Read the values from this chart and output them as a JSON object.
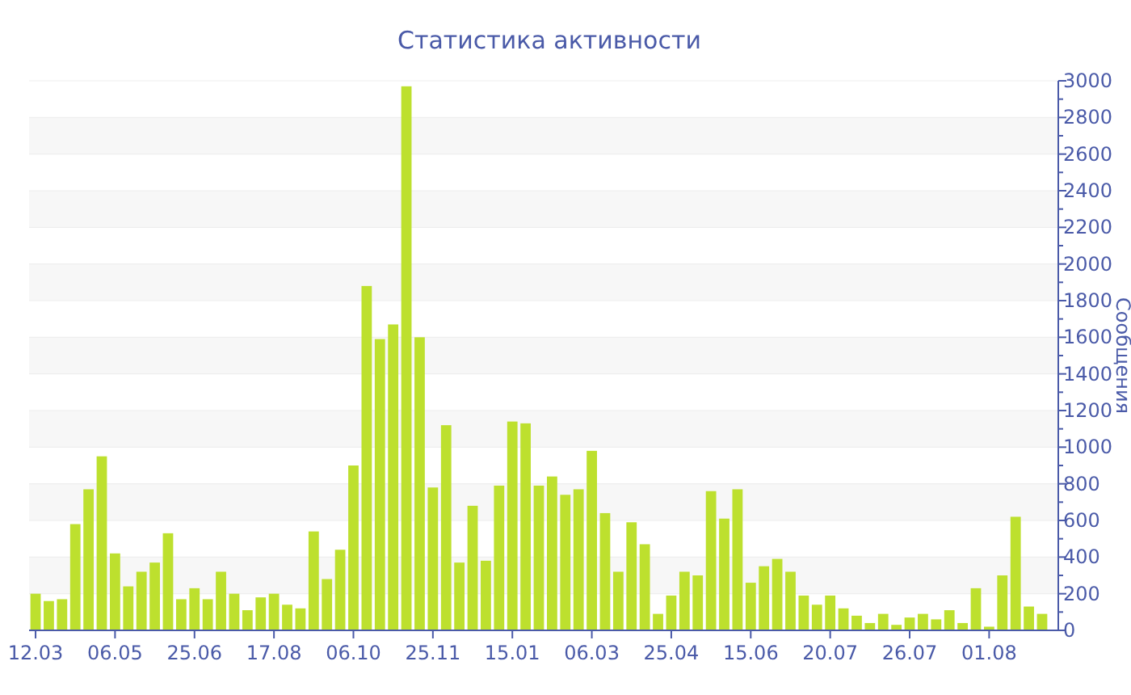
{
  "chart_data": {
    "type": "bar",
    "title": "Статистика активности",
    "y2label": "Сообщения",
    "categories": [
      "12.03",
      null,
      null,
      null,
      null,
      null,
      "06.05",
      null,
      null,
      null,
      null,
      null,
      "25.06",
      null,
      null,
      null,
      null,
      null,
      "17.08",
      null,
      null,
      null,
      null,
      null,
      "06.10",
      null,
      null,
      null,
      null,
      null,
      "25.11",
      null,
      null,
      null,
      null,
      null,
      "15.01",
      null,
      null,
      null,
      null,
      null,
      "06.03",
      null,
      null,
      null,
      null,
      null,
      "25.04",
      null,
      null,
      null,
      null,
      null,
      "15.06",
      null,
      null,
      null,
      null,
      null,
      "20.07",
      null,
      null,
      null,
      null,
      null,
      "26.07",
      null,
      null,
      null,
      null,
      null,
      "01.08",
      null,
      null,
      null,
      null
    ],
    "series": [
      {
        "axis": "y2",
        "color": "#bde02e",
        "values": [
          200,
          160,
          170,
          580,
          770,
          950,
          420,
          240,
          320,
          370,
          530,
          170,
          230,
          170,
          320,
          200,
          110,
          180,
          200,
          140,
          120,
          540,
          280,
          440,
          900,
          1880,
          1590,
          1670,
          2970,
          1600,
          780,
          1120,
          370,
          680,
          380,
          790,
          1140,
          1130,
          790,
          840,
          740,
          770,
          980,
          640,
          320,
          590,
          470,
          90,
          190,
          320,
          300,
          760,
          610,
          770,
          260,
          350,
          390,
          320,
          190,
          140,
          190,
          120,
          80,
          40,
          90,
          30,
          70,
          90,
          60,
          110,
          40,
          230,
          20,
          300,
          620,
          130,
          90
        ]
      }
    ],
    "y2lim": [
      0,
      3000
    ],
    "y2ticks": [
      0,
      {
        "value": 100,
        "label": null
      },
      200,
      {
        "value": 300,
        "label": null
      },
      400,
      {
        "value": 500,
        "label": null
      },
      600,
      {
        "value": 700,
        "label": null
      },
      800,
      {
        "value": 900,
        "label": null
      },
      1000,
      {
        "value": 1100,
        "label": null
      },
      1200,
      {
        "value": 1300,
        "label": null
      },
      1400,
      {
        "value": 1500,
        "label": null
      },
      1600,
      {
        "value": 1700,
        "label": null
      },
      1800,
      {
        "value": 1900,
        "label": null
      },
      2000,
      {
        "value": 2100,
        "label": null
      },
      2200,
      {
        "value": 2300,
        "label": null
      },
      2400,
      {
        "value": 2500,
        "label": null
      },
      2600,
      {
        "value": 2700,
        "label": null
      },
      2800,
      {
        "value": 2900,
        "label": null
      },
      3000
    ],
    "grid": "y"
  }
}
